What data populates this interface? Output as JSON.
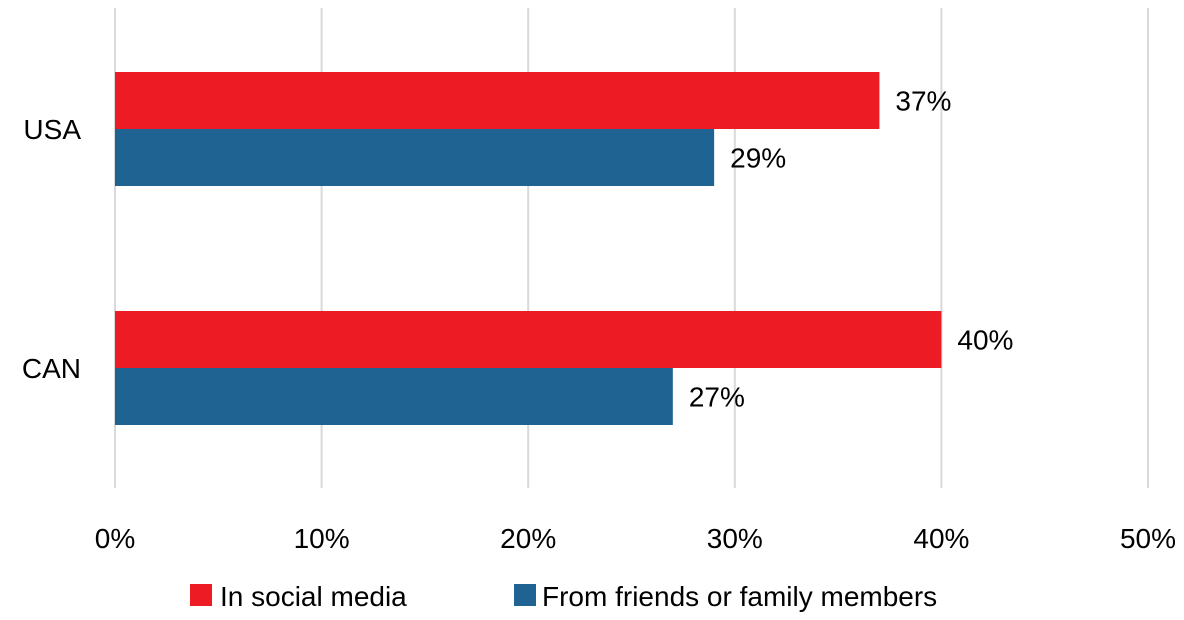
{
  "chart_data": {
    "type": "bar",
    "orientation": "horizontal",
    "categories": [
      "USA",
      "CAN"
    ],
    "series": [
      {
        "name": "In social media",
        "values": [
          37,
          40
        ],
        "labels": [
          "37%",
          "40%"
        ],
        "color": "#ed1c24"
      },
      {
        "name": "From friends or family members",
        "values": [
          29,
          27
        ],
        "labels": [
          "29%",
          "27%"
        ],
        "color": "#1f6393"
      }
    ],
    "xlim": [
      0,
      50
    ],
    "x_ticks": [
      0,
      10,
      20,
      30,
      40,
      50
    ],
    "x_tick_labels": [
      "0%",
      "10%",
      "20%",
      "30%",
      "40%",
      "50%"
    ],
    "grid": true,
    "legend_position": "bottom",
    "title": "",
    "xlabel": "",
    "ylabel": ""
  }
}
